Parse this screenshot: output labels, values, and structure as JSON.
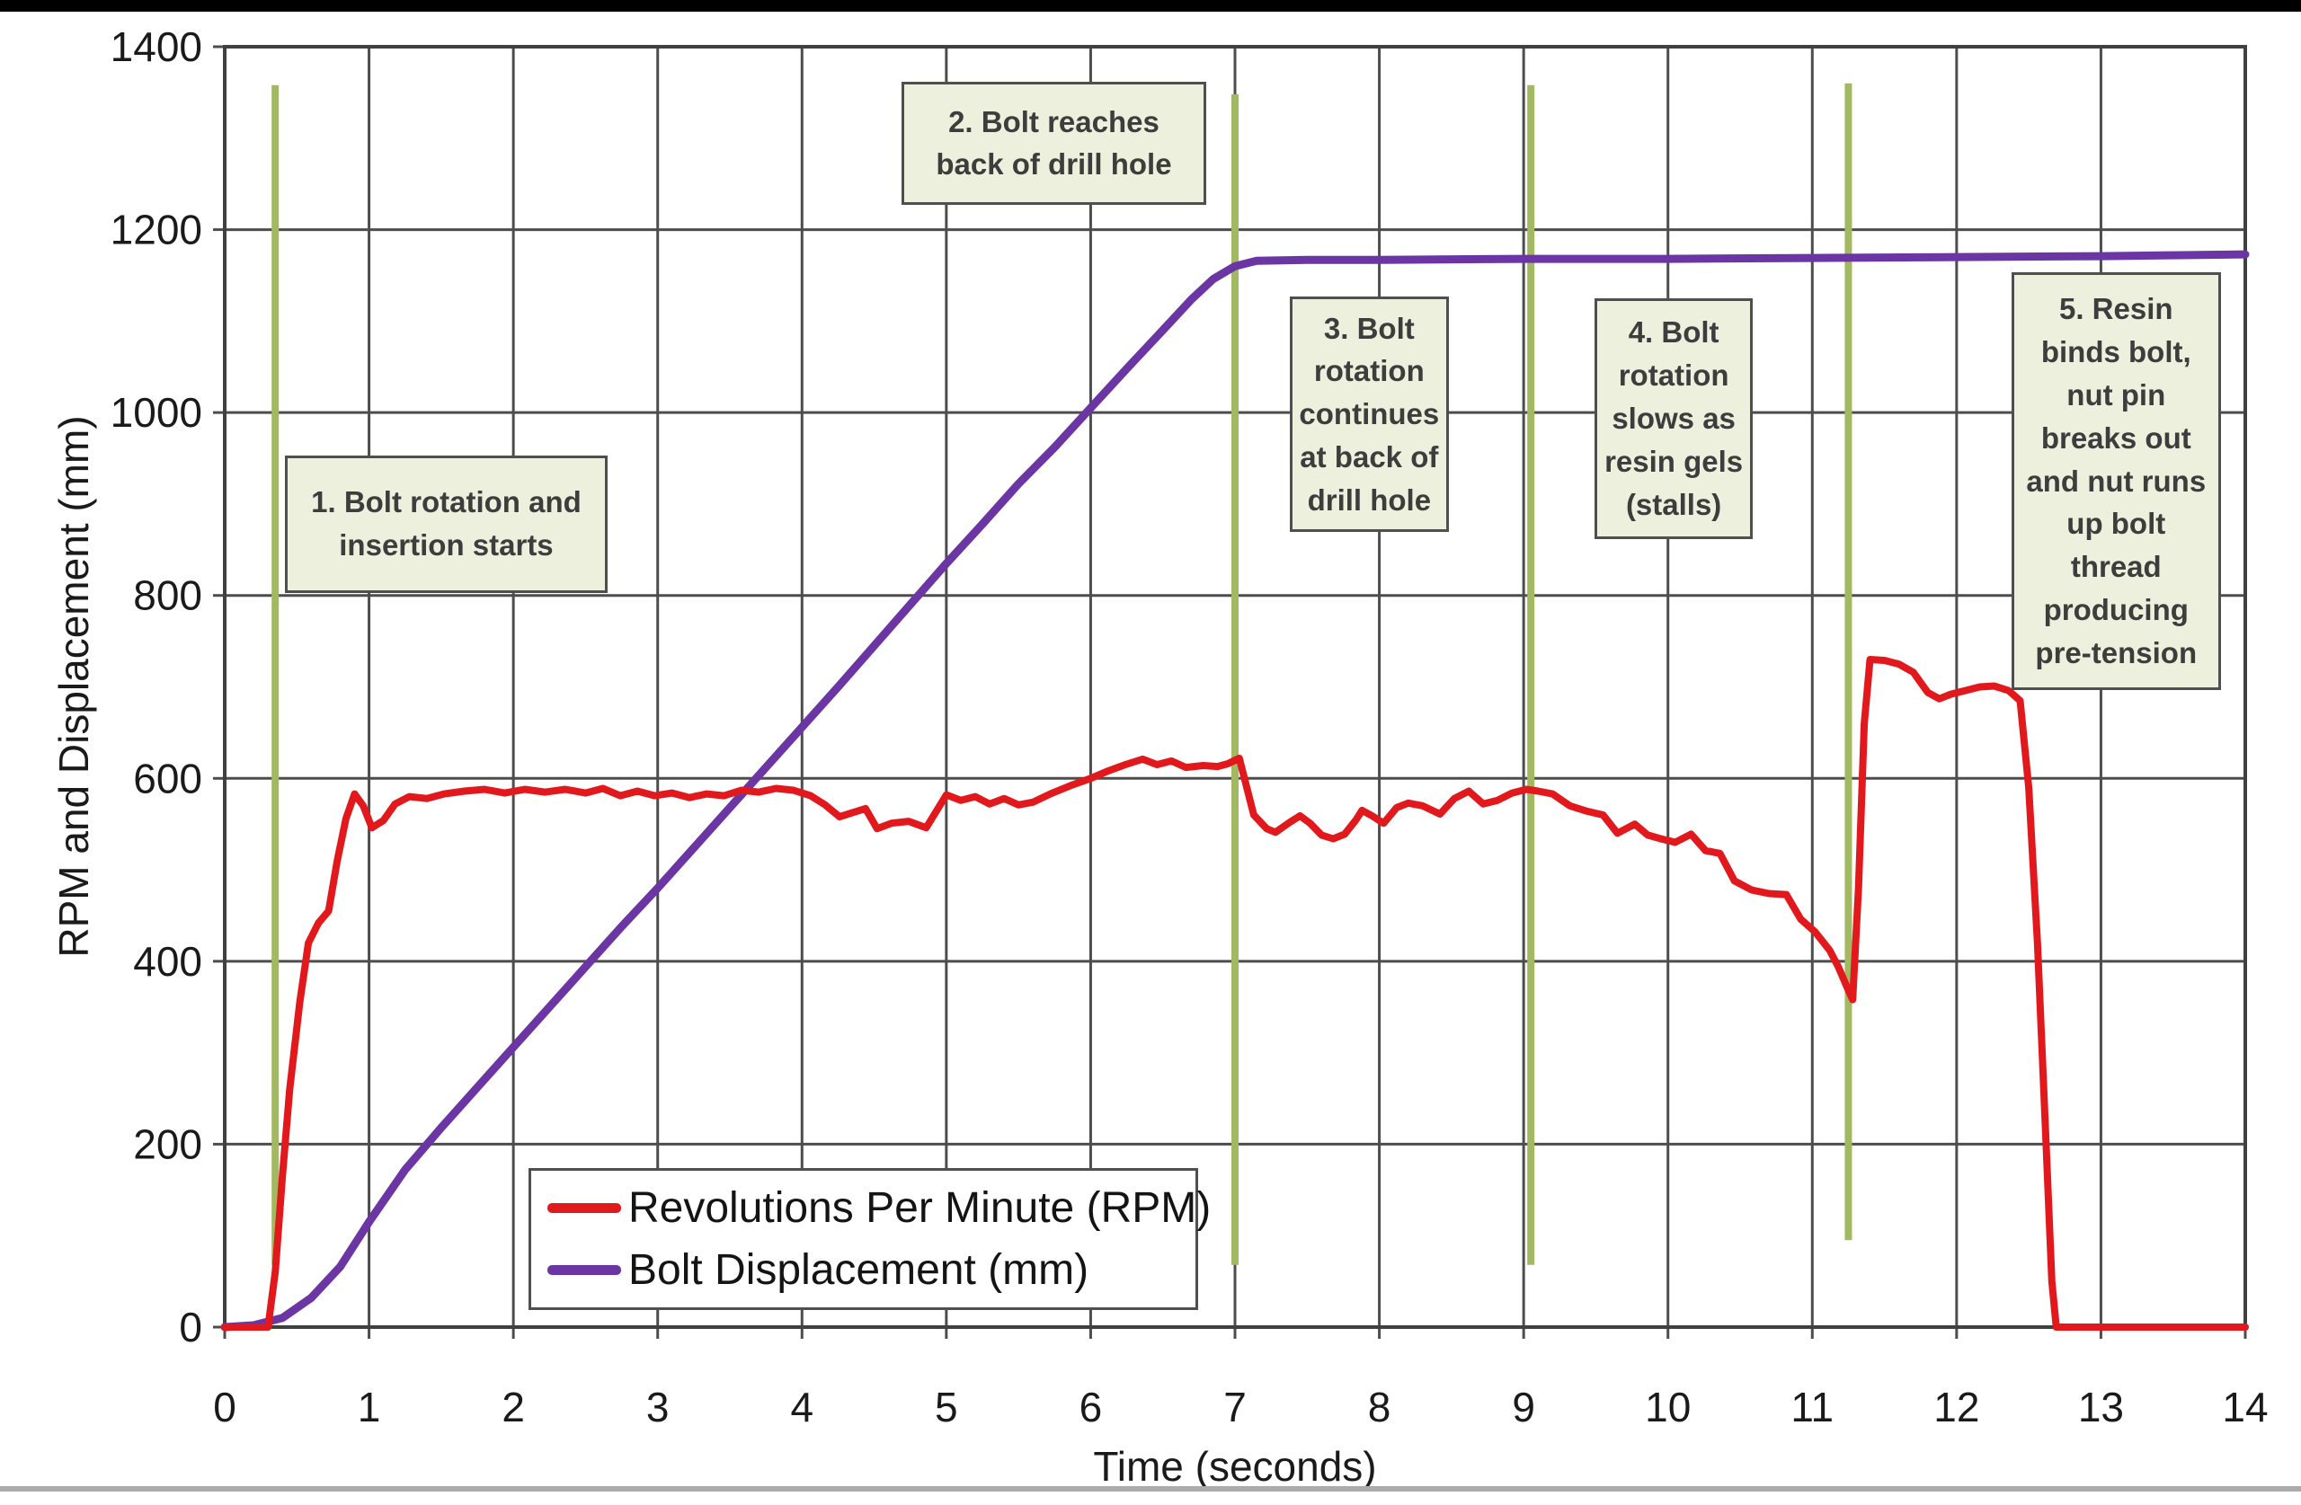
{
  "page": {
    "background_color": "#ffffff",
    "top_bar_color": "#000000",
    "bottom_rule_color": "#ababab"
  },
  "chart_data": {
    "type": "line",
    "title": "",
    "xlabel": "Time (seconds)",
    "ylabel": "RPM and Displacement (mm)",
    "xlim": [
      0,
      14
    ],
    "ylim": [
      0,
      1400
    ],
    "x_ticks": [
      0,
      1,
      2,
      3,
      4,
      5,
      6,
      7,
      8,
      9,
      10,
      11,
      12,
      13,
      14
    ],
    "y_ticks": [
      0,
      200,
      400,
      600,
      800,
      1000,
      1200,
      1400
    ],
    "grid": true,
    "grid_color": "#4d4d4d",
    "legend_position": "inside-bottom-left",
    "series": [
      {
        "name": "Revolutions Per Minute (RPM)",
        "color": "#e2191c",
        "points": [
          [
            0,
            0
          ],
          [
            0.3,
            0
          ],
          [
            0.35,
            60
          ],
          [
            0.4,
            165
          ],
          [
            0.45,
            260
          ],
          [
            0.52,
            355
          ],
          [
            0.58,
            420
          ],
          [
            0.65,
            442
          ],
          [
            0.72,
            455
          ],
          [
            0.78,
            510
          ],
          [
            0.84,
            556
          ],
          [
            0.9,
            583
          ],
          [
            0.96,
            570
          ],
          [
            1.02,
            546
          ],
          [
            1.1,
            554
          ],
          [
            1.18,
            572
          ],
          [
            1.28,
            580
          ],
          [
            1.4,
            578
          ],
          [
            1.52,
            583
          ],
          [
            1.66,
            586
          ],
          [
            1.8,
            588
          ],
          [
            1.94,
            584
          ],
          [
            2.08,
            588
          ],
          [
            2.22,
            585
          ],
          [
            2.36,
            588
          ],
          [
            2.5,
            584
          ],
          [
            2.62,
            589
          ],
          [
            2.74,
            581
          ],
          [
            2.86,
            586
          ],
          [
            2.98,
            581
          ],
          [
            3.1,
            584
          ],
          [
            3.22,
            579
          ],
          [
            3.34,
            583
          ],
          [
            3.46,
            581
          ],
          [
            3.58,
            587
          ],
          [
            3.7,
            585
          ],
          [
            3.82,
            589
          ],
          [
            3.94,
            587
          ],
          [
            4.06,
            581
          ],
          [
            4.16,
            571
          ],
          [
            4.26,
            558
          ],
          [
            4.36,
            563
          ],
          [
            4.44,
            567
          ],
          [
            4.52,
            545
          ],
          [
            4.62,
            551
          ],
          [
            4.74,
            553
          ],
          [
            4.86,
            546
          ],
          [
            5.0,
            582
          ],
          [
            5.1,
            576
          ],
          [
            5.2,
            580
          ],
          [
            5.3,
            572
          ],
          [
            5.4,
            578
          ],
          [
            5.5,
            571
          ],
          [
            5.6,
            574
          ],
          [
            5.72,
            583
          ],
          [
            5.86,
            592
          ],
          [
            6.0,
            600
          ],
          [
            6.12,
            608
          ],
          [
            6.24,
            615
          ],
          [
            6.36,
            621
          ],
          [
            6.46,
            615
          ],
          [
            6.56,
            619
          ],
          [
            6.66,
            612
          ],
          [
            6.78,
            614
          ],
          [
            6.88,
            613
          ],
          [
            6.95,
            616
          ],
          [
            7.03,
            622
          ],
          [
            7.13,
            560
          ],
          [
            7.22,
            545
          ],
          [
            7.28,
            541
          ],
          [
            7.38,
            552
          ],
          [
            7.45,
            559
          ],
          [
            7.52,
            551
          ],
          [
            7.6,
            538
          ],
          [
            7.68,
            534
          ],
          [
            7.76,
            539
          ],
          [
            7.84,
            555
          ],
          [
            7.88,
            565
          ],
          [
            7.95,
            559
          ],
          [
            8.03,
            551
          ],
          [
            8.12,
            568
          ],
          [
            8.2,
            573
          ],
          [
            8.3,
            570
          ],
          [
            8.42,
            561
          ],
          [
            8.52,
            578
          ],
          [
            8.62,
            586
          ],
          [
            8.72,
            572
          ],
          [
            8.82,
            576
          ],
          [
            8.92,
            584
          ],
          [
            9.02,
            588
          ],
          [
            9.1,
            586
          ],
          [
            9.2,
            583
          ],
          [
            9.32,
            570
          ],
          [
            9.44,
            564
          ],
          [
            9.55,
            560
          ],
          [
            9.65,
            540
          ],
          [
            9.77,
            550
          ],
          [
            9.86,
            538
          ],
          [
            9.95,
            534
          ],
          [
            10.05,
            530
          ],
          [
            10.16,
            539
          ],
          [
            10.26,
            521
          ],
          [
            10.36,
            518
          ],
          [
            10.46,
            488
          ],
          [
            10.58,
            478
          ],
          [
            10.7,
            474
          ],
          [
            10.82,
            473
          ],
          [
            10.92,
            446
          ],
          [
            11.02,
            432
          ],
          [
            11.12,
            412
          ],
          [
            11.18,
            394
          ],
          [
            11.24,
            372
          ],
          [
            11.28,
            358
          ],
          [
            11.32,
            480
          ],
          [
            11.36,
            660
          ],
          [
            11.4,
            730
          ],
          [
            11.5,
            729
          ],
          [
            11.6,
            725
          ],
          [
            11.7,
            716
          ],
          [
            11.8,
            694
          ],
          [
            11.88,
            687
          ],
          [
            11.96,
            692
          ],
          [
            12.06,
            696
          ],
          [
            12.16,
            700
          ],
          [
            12.26,
            701
          ],
          [
            12.36,
            696
          ],
          [
            12.44,
            685
          ],
          [
            12.5,
            590
          ],
          [
            12.56,
            420
          ],
          [
            12.62,
            200
          ],
          [
            12.66,
            50
          ],
          [
            12.69,
            0
          ],
          [
            13.2,
            0
          ],
          [
            14.0,
            0
          ]
        ]
      },
      {
        "name": "Bolt Displacement (mm)",
        "color": "#6b35a4",
        "points": [
          [
            0,
            0
          ],
          [
            0.2,
            2
          ],
          [
            0.4,
            10
          ],
          [
            0.6,
            32
          ],
          [
            0.8,
            66
          ],
          [
            1.0,
            115
          ],
          [
            1.25,
            172
          ],
          [
            1.5,
            218
          ],
          [
            1.75,
            262
          ],
          [
            2.0,
            306
          ],
          [
            2.25,
            350
          ],
          [
            2.5,
            394
          ],
          [
            2.75,
            438
          ],
          [
            3.0,
            480
          ],
          [
            3.25,
            524
          ],
          [
            3.5,
            568
          ],
          [
            3.75,
            612
          ],
          [
            4.0,
            656
          ],
          [
            4.25,
            700
          ],
          [
            4.5,
            745
          ],
          [
            4.75,
            790
          ],
          [
            5.0,
            835
          ],
          [
            5.25,
            878
          ],
          [
            5.5,
            922
          ],
          [
            5.75,
            962
          ],
          [
            6.0,
            1005
          ],
          [
            6.25,
            1048
          ],
          [
            6.5,
            1090
          ],
          [
            6.7,
            1124
          ],
          [
            6.85,
            1146
          ],
          [
            7.0,
            1160
          ],
          [
            7.15,
            1166
          ],
          [
            7.5,
            1167
          ],
          [
            8.0,
            1167
          ],
          [
            9.0,
            1168
          ],
          [
            10.0,
            1168
          ],
          [
            11.0,
            1169
          ],
          [
            12.0,
            1170
          ],
          [
            13.0,
            1171
          ],
          [
            13.5,
            1172
          ],
          [
            14.0,
            1173
          ]
        ]
      }
    ],
    "event_lines": {
      "color": "#a2b962",
      "lines": [
        {
          "x": 0.35,
          "y_span": [
            68,
            1358
          ]
        },
        {
          "x": 7.0,
          "y_span": [
            68,
            1348
          ]
        },
        {
          "x": 9.05,
          "y_span": [
            68,
            1358
          ]
        },
        {
          "x": 11.25,
          "y_span": [
            95,
            1360
          ]
        }
      ]
    },
    "annotations": [
      {
        "text": "1. Bolt rotation and insertion starts",
        "x_range": [
          0.42,
          2.65
        ],
        "y_range": [
          803,
          953
        ]
      },
      {
        "text": "2. Bolt reaches back of drill hole",
        "x_range": [
          4.69,
          6.8
        ],
        "y_range": [
          1227,
          1362
        ]
      },
      {
        "text": "3. Bolt rotation continues at back of drill hole",
        "x_range": [
          7.38,
          8.48
        ],
        "y_range": [
          869,
          1127
        ]
      },
      {
        "text": "4. Bolt rotation slows as resin gels (stalls)",
        "x_range": [
          9.49,
          10.59
        ],
        "y_range": [
          862,
          1125
        ]
      },
      {
        "text": "5. Resin binds bolt, nut pin breaks out and nut runs up bolt thread producing pre-tension",
        "x_range": [
          12.38,
          13.83
        ],
        "y_range": [
          697,
          1153
        ]
      }
    ]
  }
}
